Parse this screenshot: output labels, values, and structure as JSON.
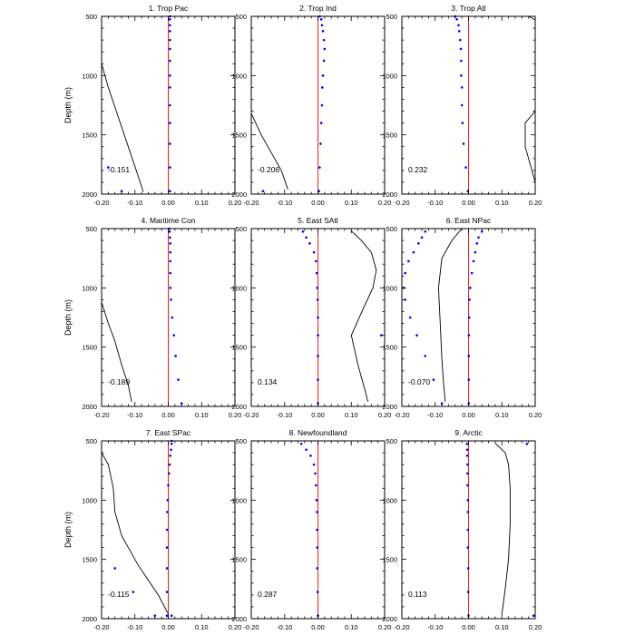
{
  "figure": {
    "ylabel": "Depth (m)",
    "x_ticks": [
      "-0.20",
      "-0.10",
      "0.00",
      "0.10",
      "0.20"
    ],
    "y_ticks": [
      "500",
      "1000",
      "1500",
      "2000"
    ],
    "colors": {
      "zero_line": "#ff0000",
      "profile_line": "#000000",
      "dots": "#0000ff",
      "frame": "#000000"
    }
  },
  "chart_data": [
    {
      "type": "line",
      "title": "1. Trop Pac",
      "annotation": "-0.151",
      "xlim": [
        -0.2,
        0.2
      ],
      "ylim": [
        2000,
        500
      ],
      "line": [
        [
          -0.2,
          900
        ],
        [
          -0.18,
          1100
        ],
        [
          -0.15,
          1350
        ],
        [
          -0.12,
          1600
        ],
        [
          -0.09,
          1850
        ],
        [
          -0.075,
          1980
        ]
      ],
      "dots": [
        [
          0.005,
          500
        ],
        [
          0.005,
          525
        ],
        [
          0.005,
          575
        ],
        [
          0.005,
          625
        ],
        [
          0.005,
          700
        ],
        [
          0.005,
          775
        ],
        [
          0.005,
          875
        ],
        [
          0.005,
          1000
        ],
        [
          0.005,
          1100
        ],
        [
          0.005,
          1250
        ],
        [
          0.005,
          1400
        ],
        [
          0.005,
          1575
        ],
        [
          0.005,
          1775
        ],
        [
          0.005,
          1975
        ],
        [
          -0.18,
          1775
        ],
        [
          -0.14,
          1975
        ]
      ]
    },
    {
      "type": "line",
      "title": "2. Trop Ind",
      "annotation": "-0.206",
      "xlim": [
        -0.2,
        0.2
      ],
      "ylim": [
        2000,
        500
      ],
      "line": [
        [
          -0.2,
          1320
        ],
        [
          -0.17,
          1500
        ],
        [
          -0.14,
          1650
        ],
        [
          -0.11,
          1800
        ],
        [
          -0.09,
          1960
        ]
      ],
      "dots": [
        [
          0.005,
          500
        ],
        [
          0.01,
          525
        ],
        [
          0.012,
          575
        ],
        [
          0.015,
          625
        ],
        [
          0.018,
          700
        ],
        [
          0.02,
          775
        ],
        [
          0.018,
          875
        ],
        [
          0.015,
          1000
        ],
        [
          0.013,
          1100
        ],
        [
          0.012,
          1250
        ],
        [
          0.01,
          1400
        ],
        [
          0.008,
          1575
        ],
        [
          0.005,
          1775
        ],
        [
          0.003,
          1975
        ],
        [
          -0.165,
          1975
        ]
      ]
    },
    {
      "type": "line",
      "title": "3. Trop Atl",
      "annotation": "0.232",
      "xlim": [
        -0.2,
        0.2
      ],
      "ylim": [
        2000,
        500
      ],
      "line_segments": [
        [
          [
            0.18,
            500
          ],
          [
            0.2,
            530
          ]
        ],
        [
          [
            0.2,
            1300
          ],
          [
            0.17,
            1400
          ],
          [
            0.17,
            1600
          ],
          [
            0.2,
            1900
          ]
        ]
      ],
      "dots": [
        [
          -0.04,
          500
        ],
        [
          -0.035,
          525
        ],
        [
          -0.03,
          575
        ],
        [
          -0.028,
          625
        ],
        [
          -0.025,
          700
        ],
        [
          -0.023,
          775
        ],
        [
          -0.022,
          875
        ],
        [
          -0.022,
          1000
        ],
        [
          -0.02,
          1100
        ],
        [
          -0.02,
          1250
        ],
        [
          -0.018,
          1400
        ],
        [
          -0.015,
          1575
        ],
        [
          -0.008,
          1775
        ],
        [
          -0.002,
          1975
        ]
      ]
    },
    {
      "type": "line",
      "title": "4. Maritime Con",
      "annotation": "-0.189",
      "xlim": [
        -0.2,
        0.2
      ],
      "ylim": [
        2000,
        500
      ],
      "line": [
        [
          -0.2,
          1120
        ],
        [
          -0.18,
          1300
        ],
        [
          -0.16,
          1450
        ],
        [
          -0.14,
          1650
        ],
        [
          -0.12,
          1820
        ],
        [
          -0.11,
          1960
        ]
      ],
      "dots": [
        [
          0.003,
          500
        ],
        [
          0.004,
          525
        ],
        [
          0.005,
          575
        ],
        [
          0.006,
          625
        ],
        [
          0.006,
          700
        ],
        [
          0.006,
          775
        ],
        [
          0.006,
          875
        ],
        [
          0.006,
          1000
        ],
        [
          0.008,
          1100
        ],
        [
          0.012,
          1250
        ],
        [
          0.017,
          1400
        ],
        [
          0.022,
          1575
        ],
        [
          0.03,
          1775
        ],
        [
          0.04,
          1975
        ]
      ]
    },
    {
      "type": "line",
      "title": "5. East SAtl",
      "annotation": "0.134",
      "xlim": [
        -0.2,
        0.2
      ],
      "ylim": [
        2000,
        500
      ],
      "line": [
        [
          0.1,
          520
        ],
        [
          0.13,
          600
        ],
        [
          0.16,
          700
        ],
        [
          0.175,
          850
        ],
        [
          0.165,
          1000
        ],
        [
          0.14,
          1150
        ],
        [
          0.1,
          1400
        ],
        [
          0.12,
          1650
        ],
        [
          0.14,
          1850
        ],
        [
          0.15,
          1960
        ]
      ],
      "dots": [
        [
          -0.045,
          525
        ],
        [
          -0.035,
          575
        ],
        [
          -0.025,
          625
        ],
        [
          -0.012,
          700
        ],
        [
          -0.006,
          775
        ],
        [
          -0.004,
          875
        ],
        [
          -0.002,
          1000
        ],
        [
          -0.001,
          1100
        ],
        [
          0,
          1250
        ],
        [
          0,
          1400
        ],
        [
          0,
          1575
        ],
        [
          0,
          1775
        ],
        [
          0,
          1975
        ],
        [
          0.19,
          1400
        ]
      ]
    },
    {
      "type": "line",
      "title": "6. East NPac",
      "annotation": "-0.070",
      "xlim": [
        -0.2,
        0.2
      ],
      "ylim": [
        2000,
        500
      ],
      "line": [
        [
          -0.02,
          500
        ],
        [
          -0.05,
          600
        ],
        [
          -0.08,
          750
        ],
        [
          -0.09,
          1000
        ],
        [
          -0.085,
          1300
        ],
        [
          -0.08,
          1600
        ],
        [
          -0.075,
          1800
        ],
        [
          -0.07,
          1960
        ]
      ],
      "dots": [
        [
          0.04,
          525
        ],
        [
          0.03,
          575
        ],
        [
          0.025,
          625
        ],
        [
          0.02,
          700
        ],
        [
          0.015,
          775
        ],
        [
          0.01,
          875
        ],
        [
          0.005,
          1000
        ],
        [
          0.003,
          1100
        ],
        [
          0.002,
          1250
        ],
        [
          0.001,
          1400
        ],
        [
          0.001,
          1575
        ],
        [
          0.001,
          1775
        ],
        [
          0.001,
          1975
        ],
        [
          -0.13,
          525
        ],
        [
          -0.14,
          575
        ],
        [
          -0.15,
          625
        ],
        [
          -0.165,
          700
        ],
        [
          -0.18,
          775
        ],
        [
          -0.19,
          875
        ],
        [
          -0.195,
          1000
        ],
        [
          -0.19,
          1100
        ],
        [
          -0.175,
          1250
        ],
        [
          -0.155,
          1400
        ],
        [
          -0.13,
          1575
        ],
        [
          -0.105,
          1775
        ],
        [
          -0.08,
          1975
        ]
      ]
    },
    {
      "type": "line",
      "title": "7. East SPac",
      "annotation": "-0.115",
      "xlim": [
        -0.2,
        0.2
      ],
      "ylim": [
        2000,
        500
      ],
      "line": [
        [
          -0.2,
          600
        ],
        [
          -0.18,
          700
        ],
        [
          -0.165,
          900
        ],
        [
          -0.16,
          1100
        ],
        [
          -0.14,
          1300
        ],
        [
          -0.09,
          1550
        ],
        [
          -0.03,
          1800
        ],
        [
          0.0,
          1960
        ]
      ],
      "dots": [
        [
          0.01,
          500
        ],
        [
          0.01,
          525
        ],
        [
          0.008,
          575
        ],
        [
          0.006,
          625
        ],
        [
          0.004,
          700
        ],
        [
          0.002,
          775
        ],
        [
          0,
          875
        ],
        [
          -0.002,
          1000
        ],
        [
          -0.003,
          1100
        ],
        [
          -0.004,
          1250
        ],
        [
          -0.004,
          1400
        ],
        [
          -0.004,
          1575
        ],
        [
          -0.004,
          1775
        ],
        [
          -0.004,
          1975
        ],
        [
          -0.16,
          1575
        ],
        [
          -0.105,
          1775
        ],
        [
          -0.04,
          1975
        ],
        [
          0.01,
          1975
        ]
      ]
    },
    {
      "type": "line",
      "title": "8. Newfoundland",
      "annotation": "0.287",
      "xlim": [
        -0.2,
        0.2
      ],
      "ylim": [
        2000,
        500
      ],
      "line": [],
      "dots": [
        [
          -0.05,
          525
        ],
        [
          -0.035,
          575
        ],
        [
          -0.022,
          625
        ],
        [
          -0.012,
          700
        ],
        [
          -0.008,
          775
        ],
        [
          -0.006,
          875
        ],
        [
          -0.004,
          1000
        ],
        [
          -0.003,
          1100
        ],
        [
          -0.003,
          1250
        ],
        [
          -0.002,
          1400
        ],
        [
          -0.002,
          1575
        ],
        [
          -0.001,
          1775
        ],
        [
          0,
          1975
        ]
      ]
    },
    {
      "type": "line",
      "title": "9. Arctic",
      "annotation": "0.113",
      "xlim": [
        -0.2,
        0.2
      ],
      "ylim": [
        2000,
        500
      ],
      "line": [
        [
          0.08,
          520
        ],
        [
          0.11,
          600
        ],
        [
          0.12,
          700
        ],
        [
          0.125,
          900
        ],
        [
          0.125,
          1200
        ],
        [
          0.12,
          1500
        ],
        [
          0.11,
          1750
        ],
        [
          0.1,
          1960
        ]
      ],
      "dots": [
        [
          -0.005,
          525
        ],
        [
          -0.004,
          575
        ],
        [
          -0.004,
          625
        ],
        [
          -0.003,
          700
        ],
        [
          -0.003,
          775
        ],
        [
          -0.003,
          875
        ],
        [
          -0.002,
          1000
        ],
        [
          -0.002,
          1100
        ],
        [
          -0.002,
          1250
        ],
        [
          -0.002,
          1400
        ],
        [
          -0.001,
          1575
        ],
        [
          -0.001,
          1775
        ],
        [
          0,
          1975
        ],
        [
          0.175,
          525
        ],
        [
          0.195,
          1975
        ]
      ]
    }
  ]
}
